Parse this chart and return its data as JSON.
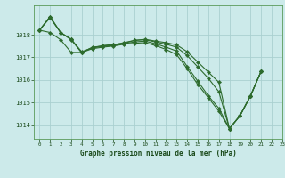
{
  "title": "Graphe pression niveau de la mer (hPa)",
  "bg_color": "#cceaea",
  "grid_color": "#aad0d0",
  "line_color": "#2d6b2d",
  "marker_color": "#2d6b2d",
  "xlim": [
    -0.5,
    23
  ],
  "ylim": [
    1013.4,
    1019.3
  ],
  "yticks": [
    1014,
    1015,
    1016,
    1017,
    1018
  ],
  "xticks": [
    0,
    1,
    2,
    3,
    4,
    5,
    6,
    7,
    8,
    9,
    10,
    11,
    12,
    13,
    14,
    15,
    16,
    17,
    18,
    19,
    20,
    21,
    22,
    23
  ],
  "series_x": [
    [
      0,
      1,
      2,
      3,
      4,
      5,
      6,
      7,
      8,
      9,
      10,
      11,
      12,
      13,
      14,
      15,
      16,
      17,
      18,
      19,
      20,
      21
    ],
    [
      0,
      1,
      2,
      3,
      4,
      5,
      6,
      7,
      8,
      9,
      10,
      11,
      12,
      13,
      14,
      15,
      16,
      17,
      18,
      19,
      20,
      21
    ],
    [
      0,
      1,
      2,
      3,
      4,
      5,
      6,
      7,
      8,
      9,
      10,
      11,
      12,
      13,
      14,
      15,
      16,
      17,
      18,
      19,
      20,
      21
    ],
    [
      0,
      1,
      2,
      3,
      4,
      5,
      6,
      7,
      8,
      9,
      10,
      11,
      12,
      13,
      14,
      15,
      16,
      17,
      18,
      19,
      20,
      21
    ]
  ],
  "series_y": [
    [
      1018.2,
      1018.8,
      1018.1,
      1017.8,
      1017.2,
      1017.45,
      1017.5,
      1017.55,
      1017.65,
      1017.75,
      1017.8,
      1017.72,
      1017.65,
      1017.55,
      1017.25,
      1016.8,
      1016.35,
      1015.9,
      1013.85,
      1014.42,
      1015.3,
      1016.38
    ],
    [
      1018.2,
      1018.8,
      1018.1,
      1017.78,
      1017.22,
      1017.42,
      1017.48,
      1017.52,
      1017.6,
      1017.68,
      1017.72,
      1017.6,
      1017.45,
      1017.28,
      1016.6,
      1015.95,
      1015.3,
      1014.75,
      1013.85,
      1014.42,
      1015.3,
      1016.38
    ],
    [
      1018.2,
      1018.1,
      1017.78,
      1017.22,
      1017.22,
      1017.38,
      1017.45,
      1017.5,
      1017.58,
      1017.62,
      1017.65,
      1017.52,
      1017.35,
      1017.12,
      1016.5,
      1015.8,
      1015.22,
      1014.62,
      1013.85,
      1014.42,
      1015.3,
      1016.38
    ],
    [
      1018.2,
      1018.75,
      1018.1,
      1017.8,
      1017.25,
      1017.42,
      1017.52,
      1017.57,
      1017.62,
      1017.75,
      1017.78,
      1017.68,
      1017.58,
      1017.45,
      1017.08,
      1016.58,
      1016.08,
      1015.48,
      1013.85,
      1014.42,
      1015.3,
      1016.38
    ]
  ]
}
